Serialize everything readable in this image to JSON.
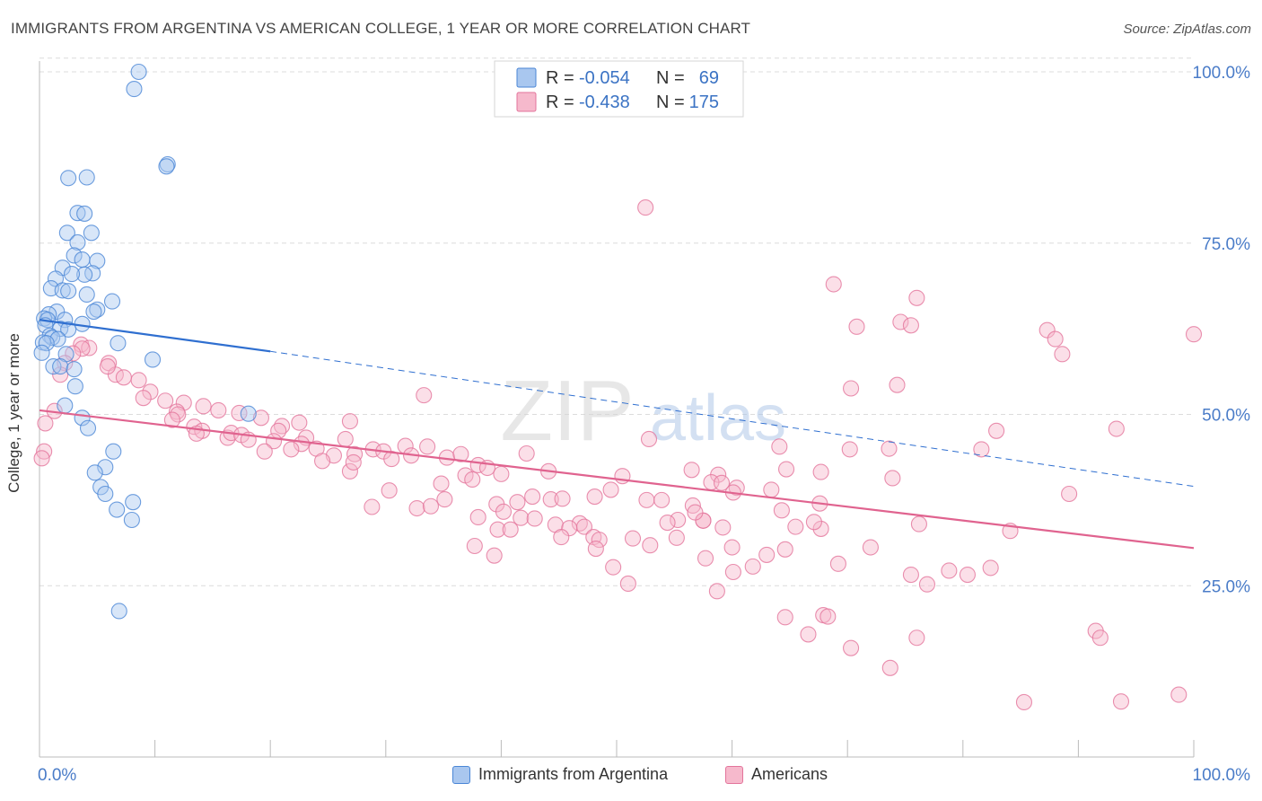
{
  "title": "IMMIGRANTS FROM ARGENTINA VS AMERICAN COLLEGE, 1 YEAR OR MORE CORRELATION CHART",
  "source": "Source: ZipAtlas.com",
  "watermark": {
    "zip": "ZIP",
    "atlas": "atlas"
  },
  "chart_data": {
    "type": "scatter",
    "title": "IMMIGRANTS FROM ARGENTINA VS AMERICAN COLLEGE, 1 YEAR OR MORE CORRELATION CHART",
    "xlabel": "",
    "ylabel": "College, 1 year or more",
    "xlim": [
      0,
      100
    ],
    "ylim": [
      0,
      105
    ],
    "x_tick_labels": [
      "0.0%",
      "100.0%"
    ],
    "y_ticks": [
      25,
      50,
      75,
      100
    ],
    "y_tick_labels": [
      "25.0%",
      "50.0%",
      "75.0%",
      "100.0%"
    ],
    "legend_top": [
      {
        "r_label": "R =",
        "r_value": "-0.054",
        "n_label": "N =",
        "n_value": "69"
      },
      {
        "r_label": "R =",
        "r_value": "-0.438",
        "n_label": "N =",
        "n_value": "175"
      }
    ],
    "series": [
      {
        "name": "Immigrants from Argentina",
        "color": "#4a86d6",
        "fill": "#a9c7ef",
        "regression": {
          "x0": 0,
          "y0": 63.8,
          "x1": 20,
          "y1": 59.2,
          "dash_to_x": 100,
          "dash_to_y": 39.5
        },
        "points": [
          [
            8.6,
            100
          ],
          [
            8.2,
            97.5
          ],
          [
            11.1,
            86.5
          ],
          [
            11.0,
            86.2
          ],
          [
            2.5,
            84.5
          ],
          [
            4.1,
            84.6
          ],
          [
            3.3,
            79.4
          ],
          [
            3.9,
            79.3
          ],
          [
            2.4,
            76.5
          ],
          [
            4.5,
            76.5
          ],
          [
            3.3,
            75.1
          ],
          [
            2.0,
            71.4
          ],
          [
            3.0,
            73.2
          ],
          [
            3.7,
            72.6
          ],
          [
            5.0,
            72.4
          ],
          [
            4.6,
            70.6
          ],
          [
            3.9,
            70.4
          ],
          [
            2.8,
            70.5
          ],
          [
            1.4,
            69.8
          ],
          [
            1.0,
            68.4
          ],
          [
            2.0,
            68.1
          ],
          [
            2.5,
            68.0
          ],
          [
            4.1,
            67.5
          ],
          [
            6.3,
            66.5
          ],
          [
            5.0,
            65.3
          ],
          [
            1.5,
            65.0
          ],
          [
            4.7,
            65.0
          ],
          [
            0.8,
            64.6
          ],
          [
            0.4,
            64.0
          ],
          [
            0.7,
            63.8
          ],
          [
            2.2,
            63.8
          ],
          [
            3.7,
            63.2
          ],
          [
            0.5,
            63.0
          ],
          [
            1.8,
            62.5
          ],
          [
            2.5,
            62.4
          ],
          [
            0.9,
            61.5
          ],
          [
            1.1,
            61.2
          ],
          [
            1.6,
            61.0
          ],
          [
            0.3,
            60.5
          ],
          [
            0.6,
            60.4
          ],
          [
            6.8,
            60.4
          ],
          [
            0.2,
            59.0
          ],
          [
            2.3,
            58.8
          ],
          [
            9.8,
            58.0
          ],
          [
            1.2,
            57.0
          ],
          [
            1.8,
            57.0
          ],
          [
            3.0,
            56.6
          ],
          [
            3.1,
            54.1
          ],
          [
            2.2,
            51.3
          ],
          [
            18.1,
            50.1
          ],
          [
            3.7,
            49.5
          ],
          [
            4.2,
            48.0
          ],
          [
            6.4,
            44.6
          ],
          [
            5.7,
            42.3
          ],
          [
            4.8,
            41.5
          ],
          [
            5.3,
            39.4
          ],
          [
            5.7,
            38.4
          ],
          [
            8.1,
            37.2
          ],
          [
            6.7,
            36.1
          ],
          [
            8.0,
            34.6
          ],
          [
            6.9,
            21.3
          ]
        ]
      },
      {
        "name": "Americans",
        "color": "#e3749b",
        "fill": "#f6b9cc",
        "regression": {
          "x0": 0,
          "y0": 50.6,
          "x1": 100,
          "y1": 30.5
        },
        "points": [
          [
            52.5,
            80.2
          ],
          [
            68.8,
            69.0
          ],
          [
            76.0,
            67.0
          ],
          [
            74.6,
            63.5
          ],
          [
            75.5,
            63.0
          ],
          [
            70.8,
            62.8
          ],
          [
            87.3,
            62.3
          ],
          [
            100.0,
            61.7
          ],
          [
            88.0,
            61.0
          ],
          [
            3.6,
            60.2
          ],
          [
            4.3,
            59.7
          ],
          [
            3.7,
            59.6
          ],
          [
            2.9,
            58.9
          ],
          [
            88.6,
            58.8
          ],
          [
            6.0,
            57.5
          ],
          [
            2.2,
            57.5
          ],
          [
            74.3,
            54.3
          ],
          [
            8.6,
            55.0
          ],
          [
            6.6,
            55.8
          ],
          [
            7.3,
            55.4
          ],
          [
            5.9,
            57.0
          ],
          [
            1.8,
            55.8
          ],
          [
            9.6,
            53.3
          ],
          [
            70.3,
            53.8
          ],
          [
            9.0,
            52.4
          ],
          [
            33.3,
            52.8
          ],
          [
            10.9,
            52.0
          ],
          [
            12.5,
            51.7
          ],
          [
            14.2,
            51.2
          ],
          [
            11.9,
            50.4
          ],
          [
            12.0,
            50.0
          ],
          [
            11.5,
            49.2
          ],
          [
            1.3,
            50.5
          ],
          [
            15.5,
            50.6
          ],
          [
            17.3,
            50.2
          ],
          [
            19.2,
            49.5
          ],
          [
            26.9,
            49.0
          ],
          [
            22.5,
            48.8
          ],
          [
            21.0,
            48.3
          ],
          [
            20.7,
            47.6
          ],
          [
            0.5,
            48.7
          ],
          [
            13.4,
            48.2
          ],
          [
            14.1,
            47.6
          ],
          [
            13.6,
            47.2
          ],
          [
            16.3,
            46.6
          ],
          [
            16.6,
            47.3
          ],
          [
            17.5,
            47.0
          ],
          [
            18.1,
            46.3
          ],
          [
            23.1,
            46.6
          ],
          [
            26.5,
            46.4
          ],
          [
            22.7,
            45.7
          ],
          [
            20.3,
            46.1
          ],
          [
            24.0,
            45.0
          ],
          [
            25.5,
            44.0
          ],
          [
            19.5,
            44.6
          ],
          [
            21.8,
            44.9
          ],
          [
            27.3,
            44.2
          ],
          [
            31.7,
            45.4
          ],
          [
            24.5,
            43.2
          ],
          [
            28.9,
            44.9
          ],
          [
            29.8,
            44.6
          ],
          [
            30.5,
            43.5
          ],
          [
            33.6,
            45.3
          ],
          [
            35.3,
            43.7
          ],
          [
            36.5,
            44.2
          ],
          [
            42.2,
            44.3
          ],
          [
            32.2,
            44.0
          ],
          [
            93.3,
            47.9
          ],
          [
            82.9,
            47.6
          ],
          [
            52.8,
            46.4
          ],
          [
            64.1,
            45.3
          ],
          [
            70.2,
            44.9
          ],
          [
            73.6,
            45.0
          ],
          [
            81.6,
            44.9
          ],
          [
            0.4,
            44.6
          ],
          [
            0.2,
            43.6
          ],
          [
            38.0,
            42.6
          ],
          [
            38.8,
            42.2
          ],
          [
            40.0,
            41.3
          ],
          [
            36.9,
            41.1
          ],
          [
            37.5,
            40.5
          ],
          [
            34.8,
            39.9
          ],
          [
            26.9,
            41.7
          ],
          [
            27.2,
            43.0
          ],
          [
            44.1,
            41.7
          ],
          [
            50.5,
            41.0
          ],
          [
            56.5,
            41.9
          ],
          [
            58.8,
            41.2
          ],
          [
            64.7,
            42.0
          ],
          [
            67.7,
            41.6
          ],
          [
            58.2,
            40.1
          ],
          [
            59.1,
            40.0
          ],
          [
            60.4,
            39.3
          ],
          [
            73.9,
            40.7
          ],
          [
            60.1,
            38.6
          ],
          [
            63.4,
            39.0
          ],
          [
            49.5,
            39.0
          ],
          [
            48.1,
            38.0
          ],
          [
            42.7,
            38.0
          ],
          [
            41.4,
            37.2
          ],
          [
            44.3,
            37.6
          ],
          [
            45.3,
            37.7
          ],
          [
            52.6,
            37.5
          ],
          [
            53.9,
            37.5
          ],
          [
            56.6,
            36.7
          ],
          [
            67.6,
            37.0
          ],
          [
            35.1,
            37.6
          ],
          [
            30.3,
            38.9
          ],
          [
            28.8,
            36.5
          ],
          [
            39.6,
            36.9
          ],
          [
            40.2,
            35.8
          ],
          [
            32.7,
            36.3
          ],
          [
            38.0,
            35.0
          ],
          [
            41.7,
            34.9
          ],
          [
            44.7,
            33.9
          ],
          [
            46.8,
            34.1
          ],
          [
            55.3,
            34.6
          ],
          [
            57.5,
            34.5
          ],
          [
            59.2,
            33.5
          ],
          [
            47.2,
            33.6
          ],
          [
            39.7,
            33.2
          ],
          [
            40.8,
            33.2
          ],
          [
            45.9,
            33.4
          ],
          [
            45.2,
            32.1
          ],
          [
            48.0,
            32.1
          ],
          [
            48.5,
            31.7
          ],
          [
            54.4,
            34.2
          ],
          [
            57.5,
            34.5
          ],
          [
            56.8,
            35.7
          ],
          [
            64.3,
            36.0
          ],
          [
            67.7,
            33.3
          ],
          [
            76.2,
            34.0
          ],
          [
            84.1,
            33.0
          ],
          [
            65.5,
            33.6
          ],
          [
            67.1,
            34.3
          ],
          [
            33.9,
            36.6
          ],
          [
            42.9,
            34.8
          ],
          [
            37.7,
            30.8
          ],
          [
            39.4,
            29.4
          ],
          [
            48.2,
            30.4
          ],
          [
            51.4,
            31.9
          ],
          [
            55.2,
            32.0
          ],
          [
            60.0,
            30.6
          ],
          [
            61.8,
            27.8
          ],
          [
            63.0,
            29.5
          ],
          [
            64.6,
            30.3
          ],
          [
            69.2,
            28.2
          ],
          [
            72.0,
            30.6
          ],
          [
            75.5,
            26.6
          ],
          [
            78.8,
            27.2
          ],
          [
            80.4,
            26.6
          ],
          [
            82.4,
            27.6
          ],
          [
            89.2,
            38.4
          ],
          [
            76.9,
            25.2
          ],
          [
            49.7,
            27.7
          ],
          [
            51.0,
            25.3
          ],
          [
            52.9,
            30.9
          ],
          [
            57.7,
            29.0
          ],
          [
            58.7,
            24.2
          ],
          [
            60.1,
            27.0
          ],
          [
            64.6,
            20.4
          ],
          [
            66.6,
            17.9
          ],
          [
            67.9,
            20.7
          ],
          [
            68.3,
            20.5
          ],
          [
            70.3,
            15.9
          ],
          [
            76.0,
            17.4
          ],
          [
            73.7,
            13.0
          ],
          [
            91.5,
            18.4
          ],
          [
            91.9,
            17.4
          ],
          [
            85.3,
            8.0
          ],
          [
            93.7,
            8.1
          ],
          [
            98.7,
            9.1
          ]
        ]
      }
    ]
  },
  "legend_bottom": [
    {
      "label": "Immigrants from Argentina"
    },
    {
      "label": "Americans"
    }
  ]
}
